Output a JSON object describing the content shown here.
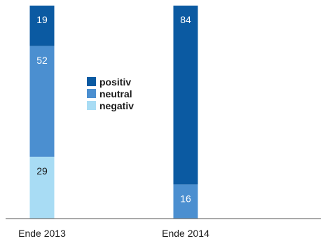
{
  "chart_data": {
    "type": "bar",
    "stacked": true,
    "percent_stacked": true,
    "categories": [
      "Ende 2013",
      "Ende 2014"
    ],
    "series": [
      {
        "name": "positiv",
        "values": [
          19,
          84
        ],
        "color": "#0b5aa2",
        "label_color": "#ffffff"
      },
      {
        "name": "neutral",
        "values": [
          52,
          16
        ],
        "color": "#4b8fd0",
        "label_color": "#ffffff"
      },
      {
        "name": "negativ",
        "values": [
          29,
          0
        ],
        "color": "#a8dcf4",
        "label_color": "#1a1a1a"
      }
    ],
    "stack_order_bottom_to_top": [
      "negativ",
      "neutral",
      "positiv"
    ],
    "ylim": [
      0,
      100
    ],
    "grid": false,
    "legend": {
      "placement": "center-left"
    },
    "axis_color": "#555555"
  }
}
